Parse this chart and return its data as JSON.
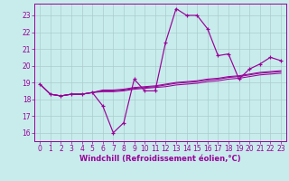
{
  "bg_color": "#c8ecec",
  "line_color": "#990099",
  "grid_color": "#aacccc",
  "font_color": "#990099",
  "hours": [
    0,
    1,
    2,
    3,
    4,
    5,
    6,
    7,
    8,
    9,
    10,
    11,
    12,
    13,
    14,
    15,
    16,
    17,
    18,
    19,
    20,
    21,
    22,
    23
  ],
  "temp": [
    18.9,
    18.3,
    18.2,
    18.3,
    18.3,
    18.4,
    17.6,
    16.0,
    16.6,
    19.2,
    18.5,
    18.5,
    21.4,
    23.4,
    23.0,
    23.0,
    22.2,
    20.6,
    20.7,
    19.2,
    19.8,
    20.1,
    20.5,
    20.3
  ],
  "line2": [
    18.9,
    18.3,
    18.2,
    18.3,
    18.3,
    18.4,
    18.45,
    18.45,
    18.5,
    18.6,
    18.65,
    18.7,
    18.75,
    18.85,
    18.9,
    18.95,
    19.05,
    19.1,
    19.2,
    19.25,
    19.35,
    19.45,
    19.5,
    19.55
  ],
  "line3": [
    18.9,
    18.3,
    18.2,
    18.3,
    18.3,
    18.4,
    18.5,
    18.5,
    18.55,
    18.65,
    18.7,
    18.75,
    18.85,
    18.95,
    19.0,
    19.05,
    19.15,
    19.2,
    19.3,
    19.35,
    19.45,
    19.55,
    19.6,
    19.65
  ],
  "line4": [
    18.9,
    18.3,
    18.2,
    18.3,
    18.3,
    18.4,
    18.55,
    18.55,
    18.6,
    18.7,
    18.75,
    18.8,
    18.9,
    19.0,
    19.05,
    19.1,
    19.2,
    19.25,
    19.35,
    19.4,
    19.5,
    19.6,
    19.65,
    19.7
  ],
  "ylim": [
    15.5,
    23.7
  ],
  "yticks": [
    16,
    17,
    18,
    19,
    20,
    21,
    22,
    23
  ],
  "xlabel": "Windchill (Refroidissement éolien,°C)",
  "tick_fontsize": 5.5,
  "label_fontsize": 6.0
}
